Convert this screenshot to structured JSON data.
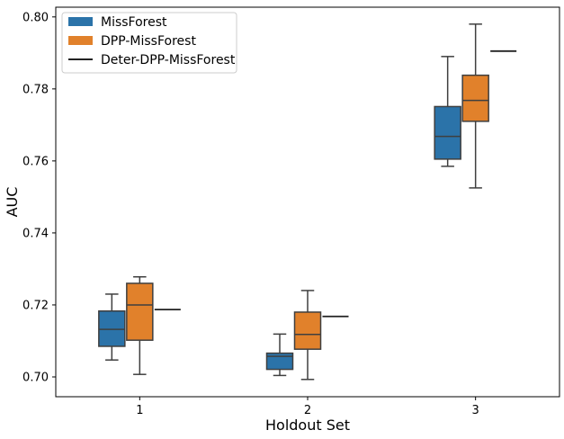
{
  "chart_data": {
    "type": "box",
    "title": "",
    "xlabel": "Holdout Set",
    "ylabel": "AUC",
    "ylim": [
      0.6945,
      0.8027
    ],
    "yticks": [
      0.7,
      0.72,
      0.74,
      0.76,
      0.78,
      0.8
    ],
    "ytick_labels": [
      "0.70",
      "0.72",
      "0.74",
      "0.76",
      "0.78",
      "0.80"
    ],
    "categories": [
      "1",
      "2",
      "3"
    ],
    "legend_position": "top-left",
    "series": [
      {
        "name": "MissForest",
        "kind": "box",
        "color": "#2b73a9",
        "boxes": [
          {
            "whisker_low": 0.7047,
            "q1": 0.7085,
            "median": 0.7132,
            "q3": 0.7183,
            "whisker_high": 0.723
          },
          {
            "whisker_low": 0.7004,
            "q1": 0.7021,
            "median": 0.7057,
            "q3": 0.7066,
            "whisker_high": 0.7119
          },
          {
            "whisker_low": 0.7585,
            "q1": 0.7605,
            "median": 0.7668,
            "q3": 0.7751,
            "whisker_high": 0.789
          }
        ]
      },
      {
        "name": "DPP-MissForest",
        "kind": "box",
        "color": "#e1812b",
        "boxes": [
          {
            "whisker_low": 0.7007,
            "q1": 0.7102,
            "median": 0.72,
            "q3": 0.726,
            "whisker_high": 0.7278
          },
          {
            "whisker_low": 0.6993,
            "q1": 0.7077,
            "median": 0.7118,
            "q3": 0.718,
            "whisker_high": 0.724
          },
          {
            "whisker_low": 0.7525,
            "q1": 0.771,
            "median": 0.7768,
            "q3": 0.7838,
            "whisker_high": 0.798
          }
        ]
      },
      {
        "name": "Deter-DPP-MissForest",
        "kind": "line",
        "color": "#222222",
        "values": [
          0.7187,
          0.7168,
          0.7905
        ]
      }
    ]
  }
}
